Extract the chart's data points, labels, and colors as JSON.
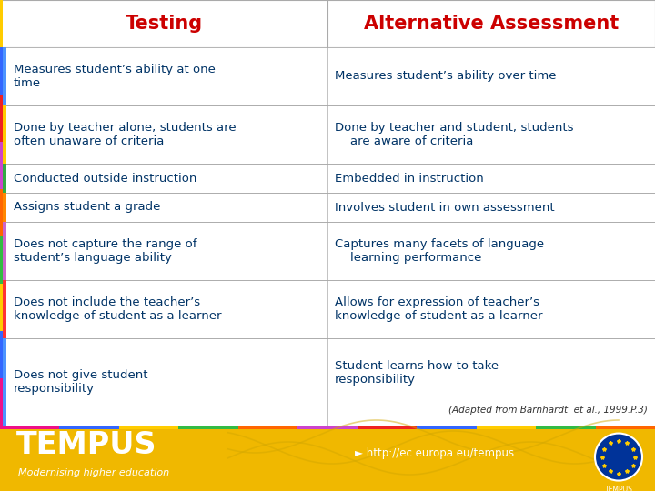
{
  "title_left": "Testing",
  "title_right": "Alternative Assessment",
  "title_color": "#cc0000",
  "rows": [
    {
      "left": "Measures student’s ability at one\ntime",
      "right": "Measures student’s ability over time",
      "side_color": "#4d94ff",
      "right_center": false
    },
    {
      "left": "Done by teacher alone; students are\noften unaware of criteria",
      "right": "Done by teacher and student; students\n    are aware of criteria",
      "side_color": "#ffcc00",
      "right_center": false
    },
    {
      "left": "Conducted outside instruction",
      "right": "Embedded in instruction",
      "side_color": "#33aa44",
      "right_center": false
    },
    {
      "left": "Assigns student a grade",
      "right": "Involves student in own assessment",
      "side_color": "#ff8800",
      "right_center": false
    },
    {
      "left": "Does not capture the range of\nstudent’s language ability",
      "right": "Captures many facets of language\n    learning performance",
      "side_color": "#cc66cc",
      "right_center": false
    },
    {
      "left": "Does not include the teacher’s\nknowledge of student as a learner",
      "right": "Allows for expression of teacher’s\nknowledge of student as a learner",
      "side_color": "#ff3333",
      "right_center": false
    },
    {
      "left": "Does not give student\nresponsibility",
      "right": "Student learns how to take\nresponsibility",
      "citation": "(Adapted from Barnhardt  et al., 1999.P.3)",
      "side_color": "#4d94ff",
      "right_center": false
    }
  ],
  "footer_bg": "#f0b800",
  "footer_text": "TEMPUS",
  "footer_subtext": "Modernising higher education",
  "footer_url": "http://ec.europa.eu/tempus",
  "text_color": "#003366",
  "table_border": "#aaaaaa",
  "bg_color": "#f5f5f5",
  "outer_border": "#cccccc"
}
